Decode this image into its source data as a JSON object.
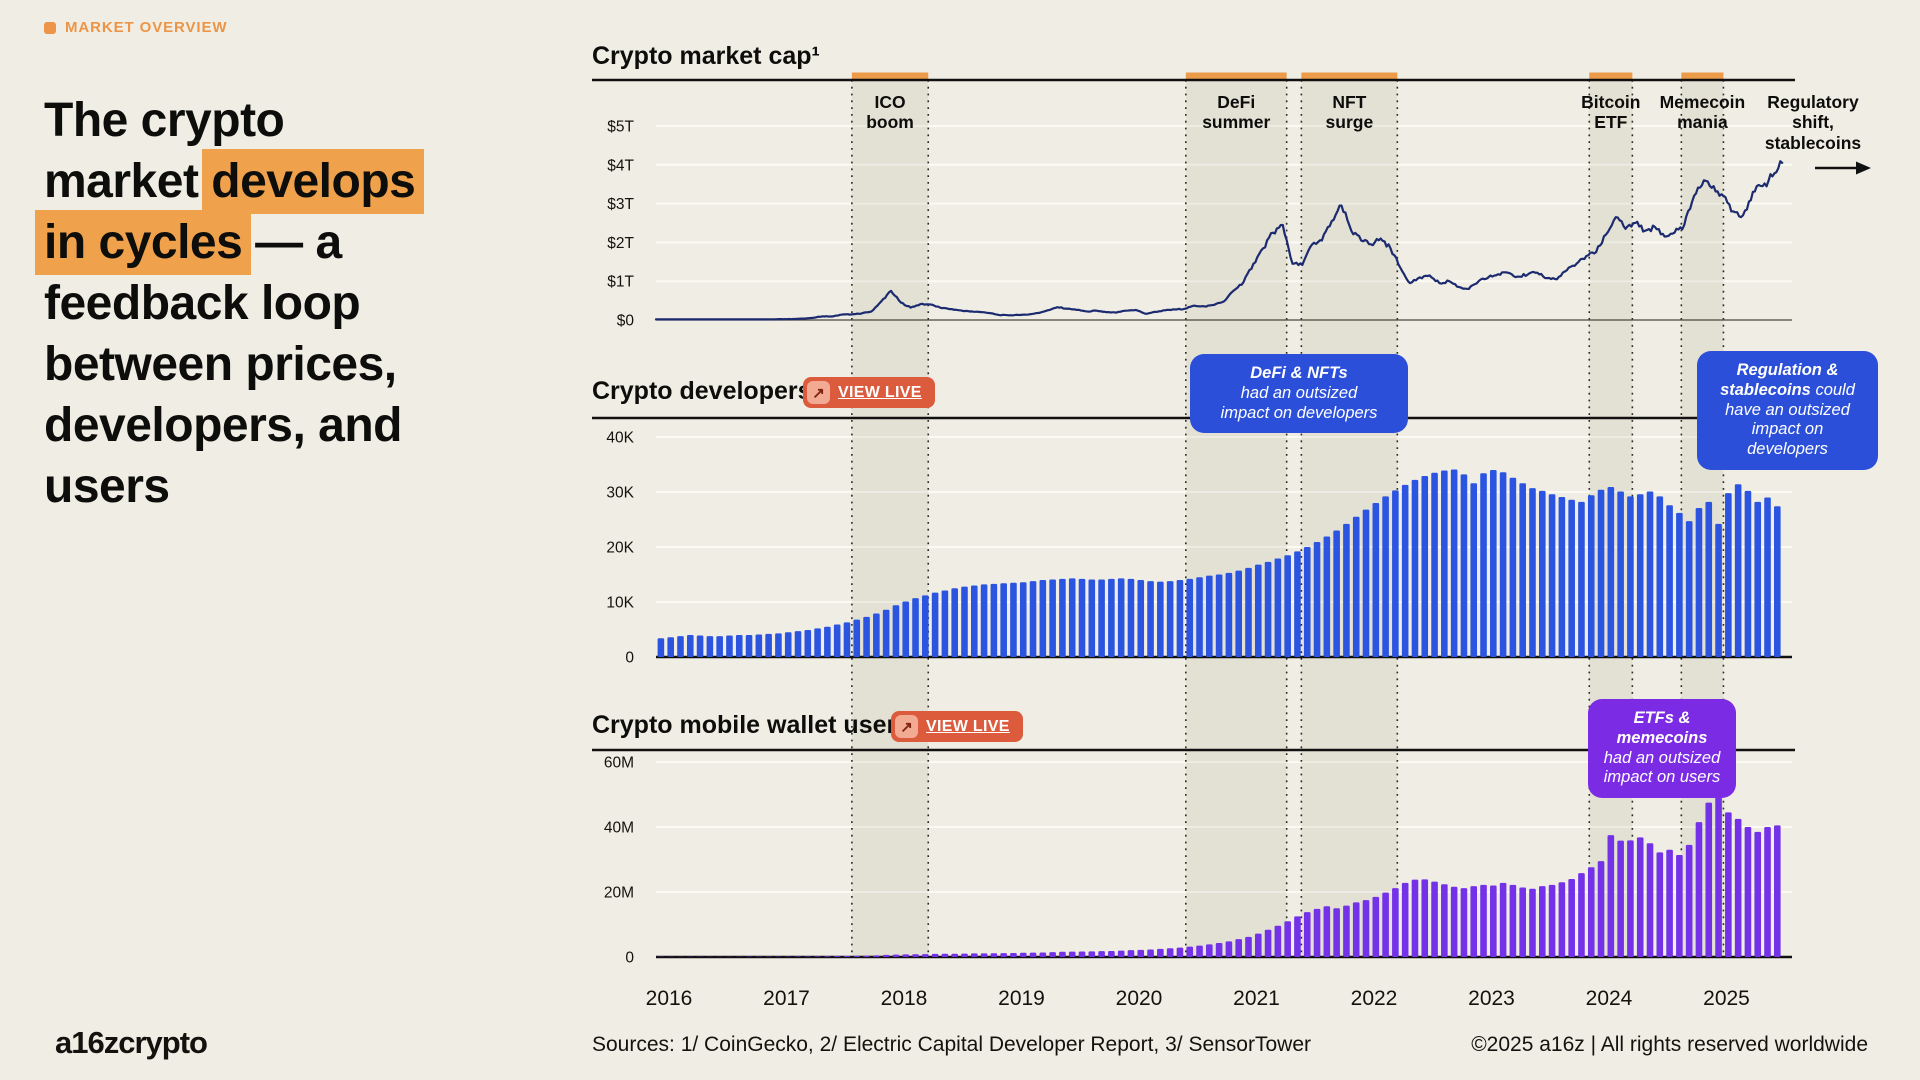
{
  "eyebrow": {
    "label": "MARKET OVERVIEW",
    "color": "#EC9447"
  },
  "headline": {
    "highlight_color": "#F0A14B",
    "lines": [
      [
        {
          "t": "The crypto"
        }
      ],
      [
        {
          "t": "market "
        },
        {
          "t": "develops",
          "hl": true
        }
      ],
      [
        {
          "t": "in cycles",
          "hl": true
        },
        {
          "t": " — a"
        }
      ],
      [
        {
          "t": "feedback loop"
        }
      ],
      [
        {
          "t": "between prices,"
        }
      ],
      [
        {
          "t": "developers, and"
        }
      ],
      [
        {
          "t": "users"
        }
      ]
    ]
  },
  "icons": {
    "arrow_up_right": "↗"
  },
  "x_axis": {
    "years": [
      "2016",
      "2017",
      "2018",
      "2019",
      "2020",
      "2021",
      "2022",
      "2023",
      "2024",
      "2025"
    ]
  },
  "chart_data": [
    {
      "type": "line",
      "title": "Crypto market cap¹",
      "unit": "$ trillion",
      "series_color": "#1C2B70",
      "x_start": "2016-01",
      "x_interval": "month",
      "ylim": [
        0,
        5.5
      ],
      "grid": true,
      "yticks": [
        {
          "v": 0,
          "label": "$0"
        },
        {
          "v": 1,
          "label": "$1T"
        },
        {
          "v": 2,
          "label": "$2T"
        },
        {
          "v": 3,
          "label": "$3T"
        },
        {
          "v": 4,
          "label": "$4T"
        },
        {
          "v": 5,
          "label": "$5T"
        }
      ],
      "values": [
        0.007,
        0.008,
        0.009,
        0.009,
        0.01,
        0.011,
        0.012,
        0.012,
        0.012,
        0.013,
        0.014,
        0.016,
        0.018,
        0.021,
        0.025,
        0.035,
        0.055,
        0.095,
        0.09,
        0.14,
        0.145,
        0.17,
        0.22,
        0.48,
        0.75,
        0.45,
        0.32,
        0.41,
        0.4,
        0.32,
        0.28,
        0.25,
        0.22,
        0.21,
        0.18,
        0.13,
        0.12,
        0.13,
        0.14,
        0.18,
        0.25,
        0.33,
        0.29,
        0.26,
        0.22,
        0.24,
        0.2,
        0.19,
        0.24,
        0.26,
        0.16,
        0.21,
        0.25,
        0.27,
        0.29,
        0.37,
        0.35,
        0.39,
        0.48,
        0.76,
        0.98,
        1.45,
        1.85,
        2.25,
        2.45,
        1.45,
        1.42,
        1.95,
        2.05,
        2.55,
        2.95,
        2.3,
        2.05,
        1.95,
        2.1,
        1.85,
        1.35,
        0.95,
        1.1,
        1.15,
        0.95,
        1.0,
        0.85,
        0.8,
        1.0,
        1.1,
        1.18,
        1.22,
        1.12,
        1.17,
        1.22,
        1.08,
        1.05,
        1.28,
        1.45,
        1.65,
        1.75,
        2.2,
        2.65,
        2.35,
        2.5,
        2.3,
        2.4,
        2.15,
        2.25,
        2.45,
        3.2,
        3.6,
        3.45,
        3.2,
        2.8,
        2.7,
        3.3,
        3.45,
        3.7,
        4.05
      ],
      "event_bands": [
        {
          "lines": [
            "ICO",
            "boom"
          ],
          "m1": 20.0,
          "m2": 27.8
        },
        {
          "lines": [
            "DeFi",
            "summer"
          ],
          "m1": 54.1,
          "m2": 64.4
        },
        {
          "lines": [
            "NFT",
            "surge"
          ],
          "m1": 65.9,
          "m2": 75.7
        },
        {
          "lines": [
            "Bitcoin",
            "ETF"
          ],
          "m1": 95.3,
          "m2": 99.7
        },
        {
          "lines": [
            "Memecoin",
            "mania"
          ],
          "m1": 104.7,
          "m2": 109.0
        }
      ],
      "future_event": {
        "lines": [
          "Regulatory",
          "shift,",
          "stablecoins"
        ]
      }
    },
    {
      "type": "bar",
      "title": "Crypto developers²",
      "live_button": "VIEW LIVE",
      "unit": "developers (thousands)",
      "bar_color": "#2B55E0",
      "x_start": "2016-01",
      "x_interval": "month",
      "ylim": [
        0,
        43.5
      ],
      "grid": true,
      "yticks": [
        {
          "v": 0,
          "label": "0"
        },
        {
          "v": 10,
          "label": "10K"
        },
        {
          "v": 20,
          "label": "20K"
        },
        {
          "v": 30,
          "label": "30K"
        },
        {
          "v": 40,
          "label": "40K"
        }
      ],
      "values": [
        3.4,
        3.6,
        3.8,
        4.0,
        3.9,
        3.8,
        3.8,
        3.9,
        4.0,
        4.0,
        4.1,
        4.2,
        4.3,
        4.5,
        4.7,
        4.9,
        5.2,
        5.5,
        5.9,
        6.3,
        6.8,
        7.3,
        7.9,
        8.6,
        9.4,
        10.1,
        10.7,
        11.2,
        11.7,
        12.1,
        12.5,
        12.8,
        13.0,
        13.2,
        13.3,
        13.4,
        13.5,
        13.6,
        13.8,
        14.0,
        14.1,
        14.2,
        14.3,
        14.2,
        14.1,
        14.1,
        14.2,
        14.3,
        14.2,
        14.0,
        13.8,
        13.7,
        13.8,
        14.0,
        14.2,
        14.5,
        14.8,
        15.0,
        15.3,
        15.7,
        16.2,
        16.8,
        17.3,
        17.9,
        18.5,
        19.2,
        20.0,
        20.9,
        21.9,
        23.0,
        24.2,
        25.5,
        26.8,
        28.0,
        29.2,
        30.3,
        31.3,
        32.2,
        32.9,
        33.5,
        33.9,
        34.1,
        33.2,
        31.6,
        33.4,
        34.0,
        33.6,
        32.6,
        31.6,
        30.7,
        30.2,
        29.6,
        29.1,
        28.6,
        28.2,
        29.4,
        30.4,
        30.9,
        30.1,
        29.2,
        29.6,
        30.1,
        29.2,
        27.6,
        26.2,
        24.7,
        27.1,
        28.2,
        24.2,
        29.8,
        31.4,
        30.2,
        28.2,
        29.0,
        27.4
      ]
    },
    {
      "type": "bar",
      "title": "Crypto mobile wallet users³",
      "live_button": "VIEW LIVE",
      "unit": "users (millions)",
      "bar_color": "#7331E8",
      "x_start": "2016-01",
      "x_interval": "month",
      "ylim": [
        0,
        63.5
      ],
      "grid": true,
      "yticks": [
        {
          "v": 0,
          "label": "0"
        },
        {
          "v": 20,
          "label": "20M"
        },
        {
          "v": 40,
          "label": "40M"
        },
        {
          "v": 60,
          "label": "60M"
        }
      ],
      "values": [
        0.05,
        0.05,
        0.06,
        0.06,
        0.07,
        0.07,
        0.08,
        0.08,
        0.09,
        0.1,
        0.1,
        0.11,
        0.12,
        0.13,
        0.15,
        0.17,
        0.2,
        0.23,
        0.26,
        0.3,
        0.35,
        0.4,
        0.5,
        0.65,
        0.75,
        0.8,
        0.85,
        0.9,
        0.95,
        1.0,
        1.0,
        1.05,
        1.1,
        1.1,
        1.15,
        1.2,
        1.25,
        1.3,
        1.35,
        1.4,
        1.5,
        1.6,
        1.65,
        1.7,
        1.75,
        1.8,
        1.85,
        1.95,
        2.1,
        2.2,
        2.3,
        2.5,
        2.7,
        2.9,
        3.2,
        3.5,
        3.9,
        4.3,
        4.8,
        5.5,
        6.2,
        7.2,
        8.4,
        9.6,
        11.0,
        12.5,
        13.8,
        14.8,
        15.6,
        15.0,
        15.8,
        16.8,
        17.5,
        18.5,
        19.8,
        21.2,
        22.8,
        23.8,
        23.9,
        23.2,
        22.4,
        21.6,
        21.2,
        21.8,
        22.2,
        22.0,
        22.8,
        22.2,
        21.4,
        21.0,
        21.8,
        22.2,
        23.0,
        24.0,
        25.8,
        27.6,
        29.5,
        37.5,
        35.8,
        35.9,
        36.8,
        35.0,
        32.2,
        33.0,
        31.4,
        34.5,
        41.5,
        47.5,
        49.8,
        44.5,
        42.5,
        40.0,
        38.5,
        40.0,
        40.5
      ]
    }
  ],
  "callouts": [
    {
      "id": "defi-nfts",
      "color": "#2B4FD8",
      "lines": [
        [
          {
            "t": "DeFi & NFTs",
            "b": true
          }
        ],
        [
          {
            "t": "had an outsized"
          }
        ],
        [
          {
            "t": "impact on developers"
          }
        ]
      ]
    },
    {
      "id": "regulation-stablecoins",
      "color": "#2B4FD8",
      "lines": [
        [
          {
            "t": "Regulation &",
            "b": true
          }
        ],
        [
          {
            "t": "stablecoins",
            "b": true
          },
          {
            "t": " could"
          }
        ],
        [
          {
            "t": "have an outsized"
          }
        ],
        [
          {
            "t": "impact on"
          }
        ],
        [
          {
            "t": "developers"
          }
        ]
      ]
    },
    {
      "id": "etfs-memecoins",
      "color": "#7B2BE3",
      "lines": [
        [
          {
            "t": "ETFs &",
            "b": true
          }
        ],
        [
          {
            "t": "memecoins",
            "b": true
          }
        ],
        [
          {
            "t": "had an outsized"
          }
        ],
        [
          {
            "t": "impact on users"
          }
        ]
      ]
    }
  ],
  "footer": {
    "logo": "a16zcrypto",
    "sources": "Sources: 1/ CoinGecko, 2/ Electric Capital Developer Report, 3/ SensorTower",
    "copyright": "©2025 a16z | All rights reserved worldwide"
  }
}
